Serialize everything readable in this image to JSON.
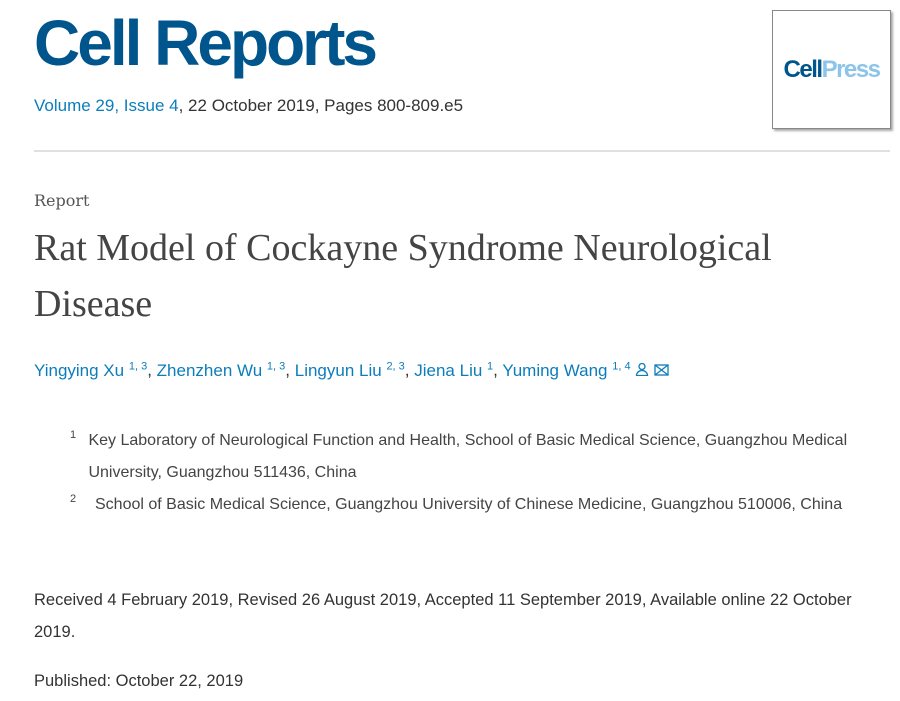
{
  "journal": "Cell Reports",
  "citation": {
    "volume": "Volume 29,",
    "issue": "Issue 4",
    "rest": ", 22 October 2019, Pages 800-809.e5"
  },
  "cover": {
    "part1": "Cell",
    "part2": "Press"
  },
  "article_type": "Report",
  "title": "Rat Model of Cockayne Syndrome Neurological Disease",
  "authors": [
    {
      "name": "Yingying Xu",
      "sup": "1, 3"
    },
    {
      "name": "Zhenzhen Wu",
      "sup": "1, 3"
    },
    {
      "name": "Lingyun Liu",
      "sup": "2, 3"
    },
    {
      "name": "Jiena Liu",
      "sup": "1"
    },
    {
      "name": "Yuming Wang",
      "sup": "1, 4"
    }
  ],
  "icons": {
    "person": "person-icon",
    "email": "envelope-icon"
  },
  "affiliations": [
    {
      "n": "1",
      "text": "Key Laboratory of Neurological Function and Health, School of Basic Medical Science, Guangzhou Medical University, Guangzhou 511436, China"
    },
    {
      "n": "2",
      "text": "School of Basic Medical Science, Guangzhou University of Chinese Medicine, Guangzhou 510006, China"
    }
  ],
  "dates": "Received 4 February 2019, Revised 26 August 2019, Accepted 11 September 2019, Available online 22 October 2019.",
  "published": "Published: October 22, 2019"
}
